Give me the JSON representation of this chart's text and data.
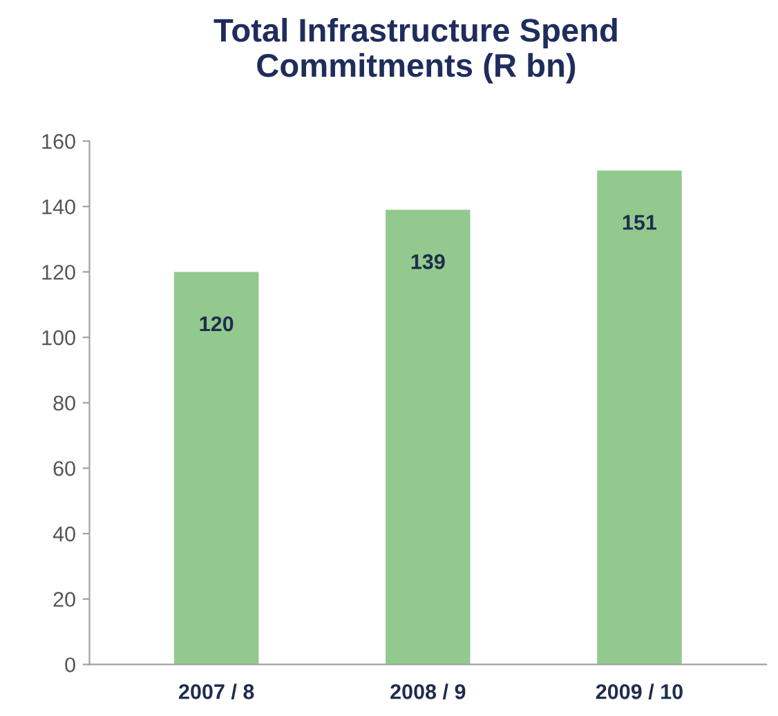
{
  "chart_data": {
    "type": "bar",
    "title": "Total Infrastructure Spend\nCommitments (R bn)",
    "categories": [
      "2007 / 8",
      "2008 / 9",
      "2009 / 10"
    ],
    "values": [
      120,
      139,
      151
    ],
    "color": "#92c98e",
    "ylim": [
      0,
      160
    ],
    "yticks": [
      0,
      20,
      40,
      60,
      80,
      100,
      120,
      140,
      160
    ],
    "grid": false,
    "data_labels": true
  }
}
